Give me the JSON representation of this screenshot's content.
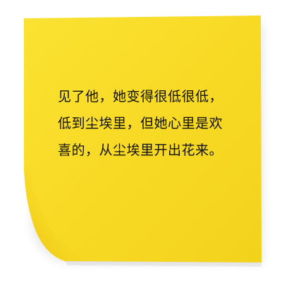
{
  "note": {
    "color": "#f8dc2a",
    "lines": [
      "见了他，她变得很低很低，",
      "低到尘埃里，但她心里是欢",
      "喜的，从尘埃里开出花来。"
    ]
  }
}
